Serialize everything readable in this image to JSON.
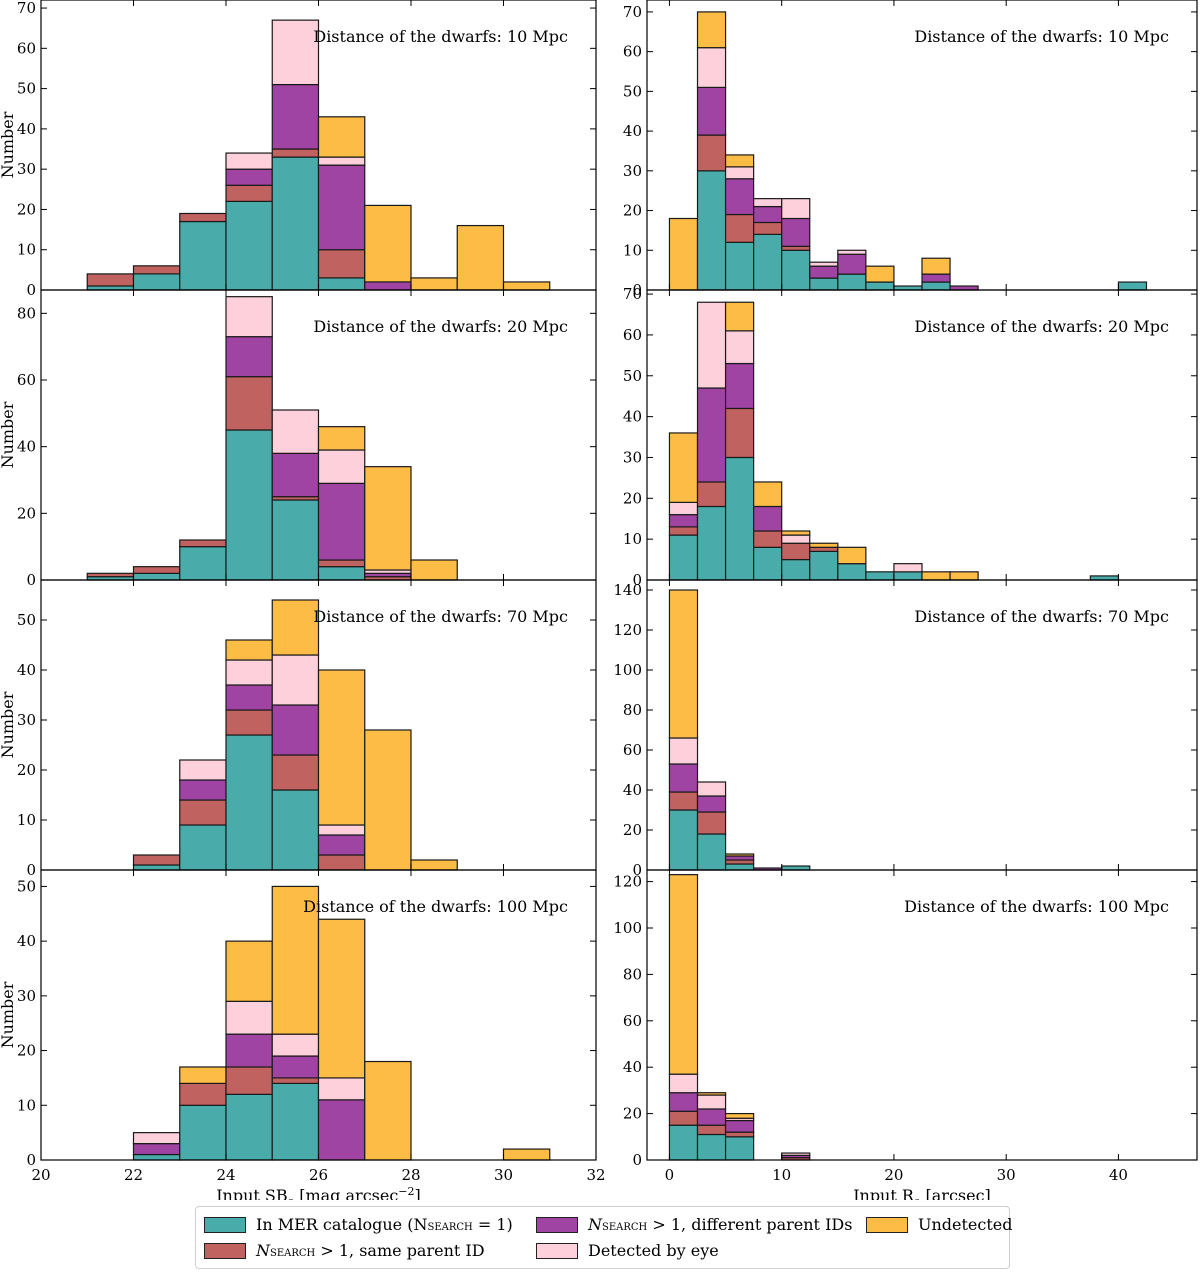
{
  "categories": {
    "teal": {
      "label": "In MER catalogue",
      "math": "(N",
      "sub": "SEARCH",
      "tail": " = 1)",
      "color": "#4aacaa"
    },
    "red": {
      "label": "N",
      "sub": "SEARCH",
      "tail": " > 1, same parent ID",
      "color": "#c0625f"
    },
    "purple": {
      "label": "N",
      "sub": "SEARCH",
      "tail": " > 1, different parent IDs",
      "color": "#a044a4"
    },
    "pink": {
      "label": "Detected by eye",
      "color": "#fdd0db"
    },
    "orange": {
      "label": "Undetected",
      "color": "#fcbc46"
    }
  },
  "stack_order": [
    "teal",
    "red",
    "purple",
    "pink",
    "orange"
  ],
  "chart_data": [
    {
      "type": "bar",
      "stacked": true,
      "panel": "left",
      "row": 0,
      "title": "Distance of the dwarfs: 10 Mpc",
      "ylabel": "Number",
      "xlabel": "",
      "xlim": [
        20,
        32
      ],
      "ylim": [
        0,
        72
      ],
      "yticks": [
        0,
        10,
        20,
        30,
        40,
        50,
        60,
        70
      ],
      "xticks": [
        20,
        22,
        24,
        26,
        28,
        30,
        32
      ],
      "bins": [
        [
          21,
          22
        ],
        [
          22,
          23
        ],
        [
          23,
          24
        ],
        [
          24,
          25
        ],
        [
          25,
          26
        ],
        [
          26,
          27
        ],
        [
          27,
          28
        ],
        [
          28,
          29
        ],
        [
          29,
          30
        ],
        [
          30,
          31
        ]
      ],
      "series": [
        {
          "name": "teal",
          "values": [
            1,
            4,
            17,
            22,
            33,
            3,
            0,
            0,
            0,
            0
          ]
        },
        {
          "name": "red",
          "values": [
            3,
            2,
            2,
            4,
            2,
            7,
            0,
            0,
            0,
            0
          ]
        },
        {
          "name": "purple",
          "values": [
            0,
            0,
            0,
            4,
            16,
            21,
            2,
            0,
            0,
            0
          ]
        },
        {
          "name": "pink",
          "values": [
            0,
            0,
            0,
            4,
            16,
            2,
            0,
            0,
            0,
            0
          ]
        },
        {
          "name": "orange",
          "values": [
            0,
            0,
            0,
            0,
            0,
            10,
            19,
            3,
            16,
            2
          ]
        }
      ]
    },
    {
      "type": "bar",
      "stacked": true,
      "panel": "right",
      "row": 0,
      "title": "Distance of the dwarfs: 10 Mpc",
      "ylabel": "",
      "xlabel": "",
      "xlim": [
        -2,
        47
      ],
      "ylim": [
        0,
        73
      ],
      "yticks": [
        0,
        10,
        20,
        30,
        40,
        50,
        60,
        70
      ],
      "xticks": [
        0,
        10,
        20,
        30,
        40
      ],
      "bins": [
        [
          0,
          2.5
        ],
        [
          2.5,
          5
        ],
        [
          5,
          7.5
        ],
        [
          7.5,
          10
        ],
        [
          10,
          12.5
        ],
        [
          12.5,
          15
        ],
        [
          15,
          17.5
        ],
        [
          17.5,
          20
        ],
        [
          20,
          22.5
        ],
        [
          22.5,
          25
        ],
        [
          25,
          27.5
        ],
        [
          40,
          42.5
        ]
      ],
      "series": [
        {
          "name": "teal",
          "values": [
            0,
            30,
            12,
            14,
            10,
            3,
            4,
            2,
            1,
            2,
            0,
            2
          ]
        },
        {
          "name": "red",
          "values": [
            0,
            9,
            7,
            3,
            1,
            0,
            0,
            0,
            0,
            0,
            0,
            0
          ]
        },
        {
          "name": "purple",
          "values": [
            0,
            12,
            9,
            4,
            7,
            3,
            5,
            0,
            0,
            2,
            1,
            0
          ]
        },
        {
          "name": "pink",
          "values": [
            0,
            10,
            3,
            2,
            5,
            1,
            1,
            0,
            0,
            0,
            0,
            0
          ]
        },
        {
          "name": "orange",
          "values": [
            18,
            9,
            3,
            0,
            0,
            0,
            0,
            4,
            0,
            4,
            0,
            0
          ]
        }
      ]
    },
    {
      "type": "bar",
      "stacked": true,
      "panel": "left",
      "row": 1,
      "title": "Distance of the dwarfs: 20 Mpc",
      "ylabel": "Number",
      "xlabel": "",
      "xlim": [
        20,
        32
      ],
      "ylim": [
        0,
        87
      ],
      "yticks": [
        0,
        20,
        40,
        60,
        80
      ],
      "xticks": [
        20,
        22,
        24,
        26,
        28,
        30,
        32
      ],
      "bins": [
        [
          21,
          22
        ],
        [
          22,
          23
        ],
        [
          23,
          24
        ],
        [
          24,
          25
        ],
        [
          25,
          26
        ],
        [
          26,
          27
        ],
        [
          27,
          28
        ],
        [
          28,
          29
        ]
      ],
      "series": [
        {
          "name": "teal",
          "values": [
            1,
            2,
            10,
            45,
            24,
            4,
            0,
            0
          ]
        },
        {
          "name": "red",
          "values": [
            1,
            2,
            2,
            16,
            1,
            2,
            1,
            0
          ]
        },
        {
          "name": "purple",
          "values": [
            0,
            0,
            0,
            12,
            13,
            23,
            1,
            0
          ]
        },
        {
          "name": "pink",
          "values": [
            0,
            0,
            0,
            12,
            13,
            10,
            1,
            0
          ]
        },
        {
          "name": "orange",
          "values": [
            0,
            0,
            0,
            0,
            0,
            7,
            31,
            6
          ]
        }
      ]
    },
    {
      "type": "bar",
      "stacked": true,
      "panel": "right",
      "row": 1,
      "title": "Distance of the dwarfs: 20 Mpc",
      "ylabel": "",
      "xlabel": "",
      "xlim": [
        -2,
        47
      ],
      "ylim": [
        0,
        71
      ],
      "yticks": [
        0,
        10,
        20,
        30,
        40,
        50,
        60,
        70
      ],
      "xticks": [
        0,
        10,
        20,
        30,
        40
      ],
      "bins": [
        [
          0,
          2.5
        ],
        [
          2.5,
          5
        ],
        [
          5,
          7.5
        ],
        [
          7.5,
          10
        ],
        [
          10,
          12.5
        ],
        [
          12.5,
          15
        ],
        [
          15,
          17.5
        ],
        [
          17.5,
          20
        ],
        [
          20,
          22.5
        ],
        [
          22.5,
          25
        ],
        [
          25,
          27.5
        ],
        [
          37.5,
          40
        ]
      ],
      "series": [
        {
          "name": "teal",
          "values": [
            11,
            18,
            30,
            8,
            5,
            7,
            4,
            2,
            2,
            0,
            0,
            1
          ]
        },
        {
          "name": "red",
          "values": [
            2,
            6,
            12,
            4,
            4,
            1,
            0,
            0,
            0,
            0,
            0,
            0
          ]
        },
        {
          "name": "purple",
          "values": [
            3,
            23,
            11,
            6,
            0,
            0,
            0,
            0,
            0,
            0,
            0,
            0
          ]
        },
        {
          "name": "pink",
          "values": [
            3,
            21,
            8,
            0,
            2,
            0,
            0,
            0,
            2,
            0,
            0,
            0
          ]
        },
        {
          "name": "orange",
          "values": [
            17,
            0,
            7,
            6,
            1,
            1,
            4,
            0,
            0,
            2,
            2,
            0
          ]
        }
      ]
    },
    {
      "type": "bar",
      "stacked": true,
      "panel": "left",
      "row": 2,
      "title": "Distance of the dwarfs: 70 Mpc",
      "ylabel": "Number",
      "xlabel": "",
      "xlim": [
        20,
        32
      ],
      "ylim": [
        0,
        58
      ],
      "yticks": [
        0,
        10,
        20,
        30,
        40,
        50
      ],
      "xticks": [
        20,
        22,
        24,
        26,
        28,
        30,
        32
      ],
      "bins": [
        [
          22,
          23
        ],
        [
          23,
          24
        ],
        [
          24,
          25
        ],
        [
          25,
          26
        ],
        [
          26,
          27
        ],
        [
          27,
          28
        ],
        [
          28,
          29
        ]
      ],
      "series": [
        {
          "name": "teal",
          "values": [
            1,
            9,
            27,
            16,
            0,
            0,
            0
          ]
        },
        {
          "name": "red",
          "values": [
            2,
            5,
            5,
            7,
            3,
            0,
            0
          ]
        },
        {
          "name": "purple",
          "values": [
            0,
            4,
            5,
            10,
            4,
            0,
            0
          ]
        },
        {
          "name": "pink",
          "values": [
            0,
            4,
            5,
            10,
            2,
            0,
            0
          ]
        },
        {
          "name": "orange",
          "values": [
            0,
            0,
            4,
            11,
            31,
            28,
            2
          ]
        }
      ]
    },
    {
      "type": "bar",
      "stacked": true,
      "panel": "right",
      "row": 2,
      "title": "Distance of the dwarfs: 70 Mpc",
      "ylabel": "",
      "xlabel": "",
      "xlim": [
        -2,
        47
      ],
      "ylim": [
        0,
        145
      ],
      "yticks": [
        0,
        20,
        40,
        60,
        80,
        100,
        120,
        140
      ],
      "xticks": [
        0,
        10,
        20,
        30,
        40
      ],
      "bins": [
        [
          0,
          2.5
        ],
        [
          2.5,
          5
        ],
        [
          5,
          7.5
        ],
        [
          7.5,
          10
        ],
        [
          10,
          12.5
        ]
      ],
      "series": [
        {
          "name": "teal",
          "values": [
            30,
            18,
            3,
            0,
            2
          ]
        },
        {
          "name": "red",
          "values": [
            9,
            11,
            2,
            0,
            0
          ]
        },
        {
          "name": "purple",
          "values": [
            14,
            8,
            2,
            1,
            0
          ]
        },
        {
          "name": "pink",
          "values": [
            13,
            7,
            0,
            0,
            0
          ]
        },
        {
          "name": "orange",
          "values": [
            74,
            0,
            1,
            0,
            0
          ]
        }
      ]
    },
    {
      "type": "bar",
      "stacked": true,
      "panel": "left",
      "row": 3,
      "title": "Distance of the dwarfs: 100 Mpc",
      "ylabel": "Number",
      "xlabel": "Input SB",
      "xlabel_sub": "e",
      "xlabel_tail": " [mag arcsec",
      "xlabel_sup": "−2",
      "xlabel_end": "]",
      "xlim": [
        20,
        32
      ],
      "ylim": [
        0,
        53
      ],
      "yticks": [
        0,
        10,
        20,
        30,
        40,
        50
      ],
      "xticks": [
        20,
        22,
        24,
        26,
        28,
        30,
        32
      ],
      "bins": [
        [
          22,
          23
        ],
        [
          23,
          24
        ],
        [
          24,
          25
        ],
        [
          25,
          26
        ],
        [
          26,
          27
        ],
        [
          27,
          28
        ],
        [
          30,
          31
        ]
      ],
      "series": [
        {
          "name": "teal",
          "values": [
            1,
            10,
            12,
            14,
            0,
            0,
            0
          ]
        },
        {
          "name": "red",
          "values": [
            0,
            4,
            5,
            1,
            0,
            0,
            0
          ]
        },
        {
          "name": "purple",
          "values": [
            2,
            0,
            6,
            4,
            11,
            0,
            0
          ]
        },
        {
          "name": "pink",
          "values": [
            2,
            0,
            6,
            4,
            4,
            0,
            0
          ]
        },
        {
          "name": "orange",
          "values": [
            0,
            3,
            11,
            27,
            29,
            18,
            2
          ]
        }
      ]
    },
    {
      "type": "bar",
      "stacked": true,
      "panel": "right",
      "row": 3,
      "title": "Distance of the dwarfs: 100 Mpc",
      "ylabel": "",
      "xlabel": "Input R",
      "xlabel_sub": "e",
      "xlabel_tail": " [arcsec]",
      "xlim": [
        -2,
        47
      ],
      "ylim": [
        0,
        125
      ],
      "yticks": [
        0,
        20,
        40,
        60,
        80,
        100,
        120
      ],
      "xticks": [
        0,
        10,
        20,
        30,
        40
      ],
      "bins": [
        [
          0,
          2.5
        ],
        [
          2.5,
          5
        ],
        [
          5,
          7.5
        ],
        [
          10,
          12.5
        ]
      ],
      "series": [
        {
          "name": "teal",
          "values": [
            15,
            11,
            10,
            0
          ]
        },
        {
          "name": "red",
          "values": [
            6,
            4,
            2,
            1
          ]
        },
        {
          "name": "purple",
          "values": [
            8,
            7,
            5,
            1
          ]
        },
        {
          "name": "pink",
          "values": [
            8,
            6,
            1,
            1
          ]
        },
        {
          "name": "orange",
          "values": [
            86,
            1,
            2,
            0
          ]
        }
      ]
    }
  ]
}
